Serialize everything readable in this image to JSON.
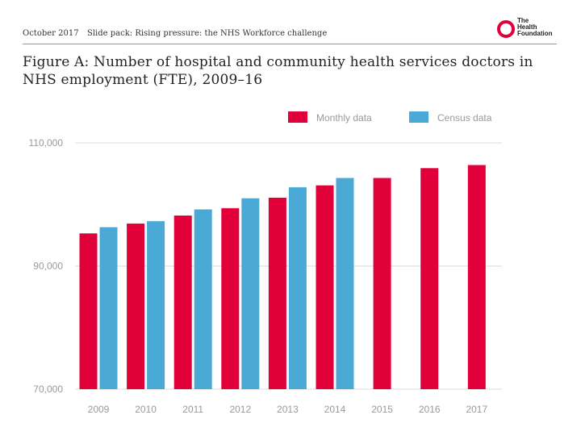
{
  "header": {
    "date": "October 2017",
    "title": "Slide pack: Rising pressure: the NHS Workforce challenge",
    "logo_lines": [
      "The",
      "Health",
      "Foundation"
    ]
  },
  "figure_title": "Figure A: Number of hospital and community health services doctors in NHS employment (FTE), 2009–16",
  "colors": {
    "monthly": "#e2003a",
    "census": "#4ba9d6",
    "grid": "#dddddd",
    "axis_text": "#999999"
  },
  "chart_data": {
    "type": "bar",
    "title": "Figure A: Number of hospital and community health services doctors in NHS employment (FTE), 2009–16",
    "xlabel": "",
    "ylabel": "",
    "categories": [
      "2009",
      "2010",
      "2011",
      "2012",
      "2013",
      "2014",
      "2015",
      "2016",
      "2017"
    ],
    "series": [
      {
        "name": "Monthly data",
        "values": [
          95300,
          96900,
          98200,
          99400,
          101100,
          103100,
          104300,
          105900,
          106400
        ]
      },
      {
        "name": "Census data",
        "values": [
          96300,
          97300,
          99200,
          101000,
          102800,
          104300,
          null,
          null,
          null
        ]
      }
    ],
    "ylim": [
      70000,
      110000
    ],
    "yticks": [
      70000,
      90000,
      110000
    ],
    "ytick_labels": [
      "70,000",
      "90,000",
      "110,000"
    ],
    "grid": true,
    "legend": [
      "Monthly data",
      "Census data"
    ],
    "legend_position": "top-right"
  }
}
